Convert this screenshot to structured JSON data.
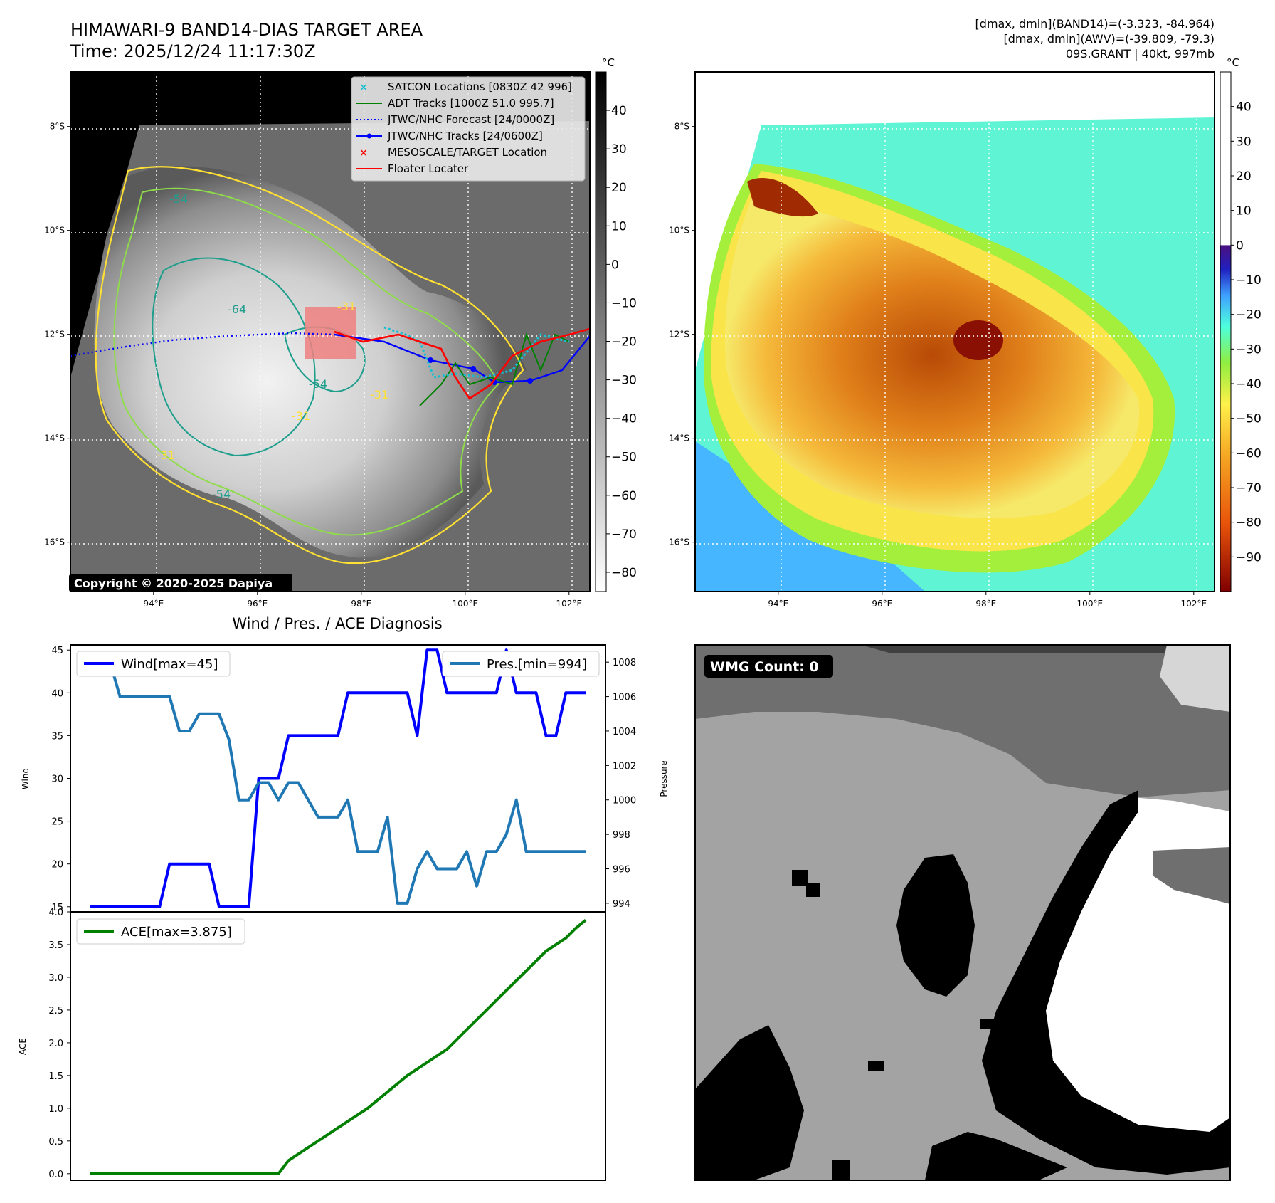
{
  "header": {
    "title": "HIMAWARI-9 BAND14-DIAS TARGET AREA",
    "time": "Time: 2025/12/24 11:17:30Z",
    "info_line1": "[dmax, dmin](BAND14)=(-3.323, -84.964)",
    "info_line2": "[dmax, dmin](AWV)=(-39.809, -79.3)",
    "info_line3": "09S.GRANT | 40kt, 997mb"
  },
  "copyright": "Copyright © 2020-2025 Dapiya",
  "map_axes": {
    "lat_labels": [
      "8°S",
      "10°S",
      "12°S",
      "14°S",
      "16°S"
    ],
    "lat_values": [
      -8,
      -10,
      -12,
      -14,
      -16
    ],
    "lon_labels": [
      "94°E",
      "96°E",
      "98°E",
      "100°E",
      "102°E"
    ],
    "lon_values": [
      94,
      96,
      98,
      100,
      102
    ],
    "lon_range": [
      92.4,
      102.4
    ],
    "lat_range": [
      -16.95,
      -6.95
    ]
  },
  "colorbar_ir": {
    "unit": "°C",
    "ticks": [
      "40",
      "30",
      "20",
      "10",
      "0",
      "−10",
      "−20",
      "−30",
      "−40",
      "−50",
      "−60",
      "−70",
      "−80"
    ],
    "range": [
      -85,
      50
    ],
    "colors": [
      "#ffffff",
      "#000000"
    ]
  },
  "colorbar_awv": {
    "unit": "°C",
    "ticks": [
      "40",
      "30",
      "20",
      "10",
      "0",
      "−10",
      "−20",
      "−30",
      "−40",
      "−50",
      "−60",
      "−70",
      "−80",
      "−90"
    ],
    "range": [
      -100,
      50
    ],
    "colors": [
      "#800000",
      "#e8530a",
      "#f5a623",
      "#fff04a",
      "#90ee40",
      "#4dffdd",
      "#3fa0ff",
      "#2020c0",
      "#4a1080",
      "#ffffff"
    ]
  },
  "legend": {
    "items": [
      {
        "label": "SATCON Locations [0830Z 42 996]",
        "color": "#17becf",
        "kind": "x"
      },
      {
        "label": "ADT Tracks [1000Z 51.0 995.7]",
        "color": "#008000",
        "kind": "line"
      },
      {
        "label": "JTWC/NHC Forecast [24/0000Z]",
        "color": "#0000ff",
        "kind": "dotted"
      },
      {
        "label": "JTWC/NHC Tracks [24/0600Z]",
        "color": "#0000ff",
        "kind": "line-dot"
      },
      {
        "label": "MESOSCALE/TARGET Location",
        "color": "#ff0000",
        "kind": "x"
      },
      {
        "label": "Floater Locater",
        "color": "#ff0000",
        "kind": "line"
      }
    ]
  },
  "contour_labels": [
    "-54",
    "-64",
    "-31",
    "-31",
    "-54",
    "-31",
    "-31",
    "-54"
  ],
  "wmg": {
    "label": "WMG Count: 0",
    "colors": [
      "#000000",
      "#404040",
      "#6f6f6f",
      "#a3a3a3",
      "#d6d6d6",
      "#ffffff"
    ]
  },
  "chart_data": [
    {
      "type": "line",
      "title": "Wind / Pres. / ACE Diagnosis",
      "ylabel": "Wind",
      "ylabel2": "Pressure",
      "ylim": [
        14.4,
        45.6
      ],
      "ylim2": [
        993.5,
        1009.0
      ],
      "yticks": [
        15,
        20,
        25,
        30,
        35,
        40,
        45
      ],
      "yticks2": [
        994,
        996,
        998,
        1000,
        1002,
        1004,
        1006,
        1008
      ],
      "xlim": [
        -2,
        52
      ],
      "series": [
        {
          "name": "Wind[max=45]",
          "color": "#0000ff",
          "x": [
            0,
            7,
            8,
            12,
            13,
            16,
            17,
            19,
            20,
            25,
            26,
            32,
            33,
            34,
            35,
            36,
            37,
            38,
            39,
            40,
            41,
            42,
            43,
            44,
            45,
            46,
            47,
            48,
            49,
            50
          ],
          "values": [
            15,
            15,
            20,
            20,
            15,
            15,
            30,
            30,
            35,
            35,
            40,
            40,
            35,
            45,
            45,
            40,
            40,
            40,
            40,
            40,
            40,
            45,
            40,
            40,
            40,
            35,
            35,
            40,
            40,
            40
          ]
        },
        {
          "name": "Pres.[min=994]",
          "color": "#1f77b4",
          "axis": "right",
          "x": [
            0,
            2,
            3,
            8,
            9,
            10,
            11,
            12,
            13,
            14,
            15,
            16,
            17,
            18,
            19,
            20,
            21,
            22,
            23,
            24,
            25,
            26,
            27,
            28,
            29,
            30,
            31,
            32,
            33,
            34,
            35,
            36,
            37,
            38,
            39,
            40,
            41,
            42,
            43,
            44,
            45,
            46,
            47,
            48,
            49,
            50
          ],
          "values": [
            1008,
            1008,
            1006,
            1006,
            1004.0,
            1004,
            1005,
            1005,
            1005,
            1003.5,
            1000.0,
            1000,
            1001,
            1001,
            1000,
            1001,
            1001,
            1000,
            999,
            999,
            999,
            1000,
            997,
            997,
            997,
            999,
            994,
            994,
            996,
            997,
            996,
            996,
            996,
            997,
            995,
            997,
            997,
            998,
            1000,
            997,
            997,
            997,
            997,
            997,
            997,
            997
          ]
        }
      ]
    },
    {
      "type": "line",
      "ylabel": "ACE",
      "ylim": [
        -0.1,
        4.0
      ],
      "yticks": [
        "0.0",
        "0.5",
        "1.0",
        "1.5",
        "2.0",
        "2.5",
        "3.0",
        "3.5",
        "4.0"
      ],
      "xlim": [
        -2,
        52
      ],
      "series": [
        {
          "name": "ACE[max=3.875]",
          "color": "#008000",
          "x": [
            0,
            10,
            19,
            20,
            22,
            24,
            26,
            28,
            30,
            32,
            34,
            36,
            38,
            40,
            42,
            44,
            46,
            48,
            49,
            50
          ],
          "values": [
            0,
            0,
            0,
            0.2,
            0.4,
            0.6,
            0.8,
            1.0,
            1.25,
            1.5,
            1.7,
            1.9,
            2.2,
            2.5,
            2.8,
            3.1,
            3.4,
            3.6,
            3.75,
            3.875
          ]
        }
      ]
    }
  ]
}
